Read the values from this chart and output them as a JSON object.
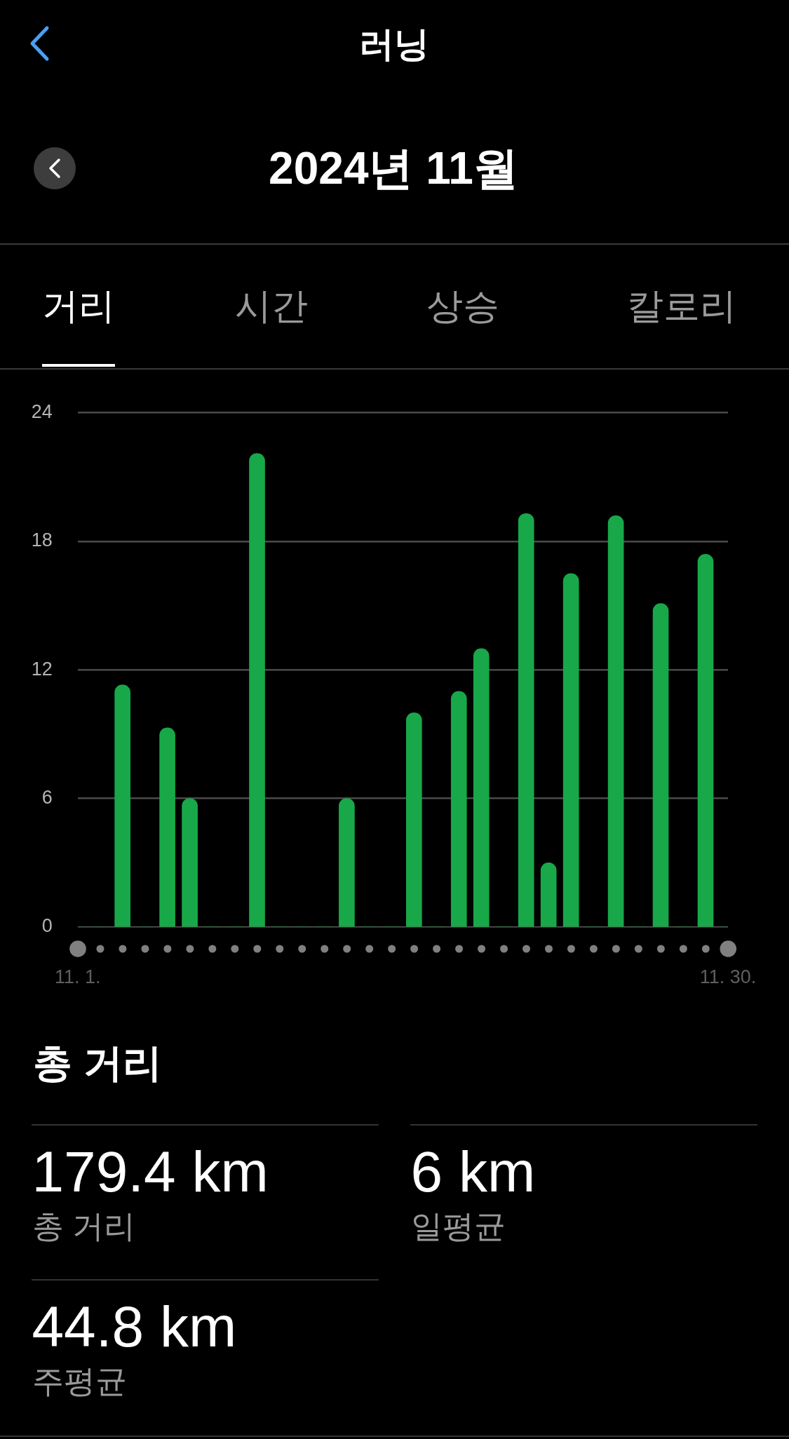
{
  "chart_data": [
    {
      "type": "bar",
      "title": "러닝",
      "subtitle": "2024년 11월",
      "annotations": [
        "거리",
        "시간",
        "상승",
        "칼로리"
      ],
      "categories": [
        "11. 1.",
        null,
        null,
        null,
        null,
        null,
        null,
        null,
        null,
        null,
        null,
        null,
        null,
        null,
        null,
        null,
        null,
        null,
        null,
        null,
        null,
        null,
        null,
        null,
        null,
        null,
        null,
        null,
        null,
        "11. 30."
      ],
      "values": [
        0,
        0,
        11.3,
        0,
        9.3,
        6.0,
        0,
        0,
        22.1,
        0,
        0,
        0,
        6.0,
        0,
        0,
        10.0,
        0,
        11.0,
        13.0,
        0,
        19.3,
        3.0,
        16.5,
        0,
        19.2,
        0,
        15.1,
        0,
        17.4,
        0
      ],
      "color": "#18a849",
      "ylim": [
        0,
        24
      ],
      "yticks": [
        0,
        6,
        12,
        18,
        24
      ],
      "grid": "y"
    },
    {
      "type": "other",
      "title": "총 거리",
      "annotations": [
        "179.4 km",
        "총 거리",
        "6 km",
        "일평균",
        "44.8 km",
        "주평균"
      ]
    }
  ]
}
